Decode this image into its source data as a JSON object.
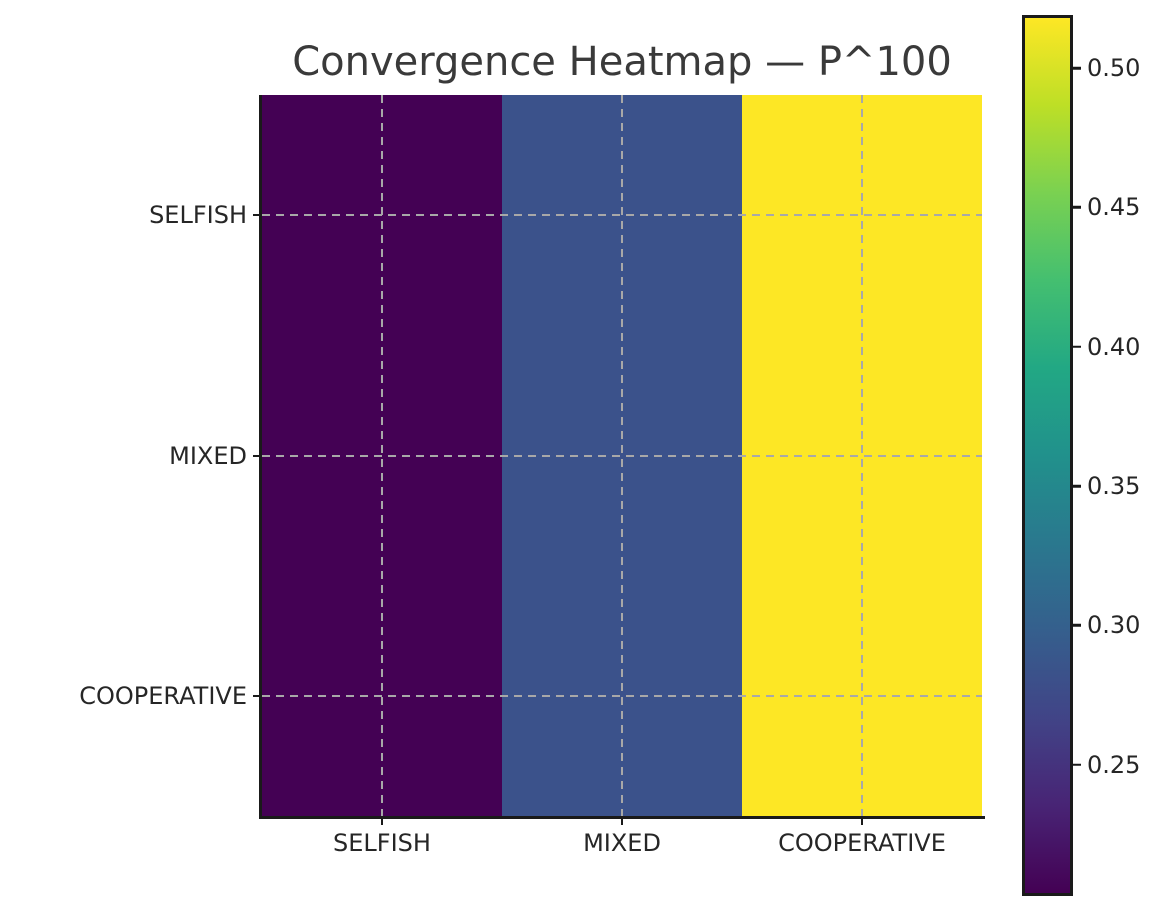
{
  "figure": {
    "background": "#ffffff"
  },
  "chart_data": {
    "type": "heatmap",
    "title": "Convergence Heatmap — P^100",
    "x_categories": [
      "SELFISH",
      "MIXED",
      "COOPERATIVE"
    ],
    "y_categories": [
      "SELFISH",
      "MIXED",
      "COOPERATIVE"
    ],
    "rows": [
      [
        0.204,
        0.279,
        0.518
      ],
      [
        0.204,
        0.279,
        0.518
      ],
      [
        0.204,
        0.279,
        0.518
      ]
    ],
    "cell_colors_by_column": [
      "#440154",
      "#3b528b",
      "#fde725"
    ],
    "colormap": "viridis",
    "colorbar": {
      "position": "right",
      "vmin": 0.204,
      "vmax": 0.518,
      "ticks": [
        0.5,
        0.45,
        0.4,
        0.35,
        0.3,
        0.25
      ],
      "tick_labels": [
        "0.50",
        "0.45",
        "0.40",
        "0.35",
        "0.30",
        "0.25"
      ]
    },
    "grid": true,
    "grid_linestyle": "dashed"
  },
  "colors": {
    "grid": "#a8a8a8",
    "spine": "#1a1a1a",
    "title_text": "#3a3a3a",
    "tick_text": "#262626",
    "background": "#ffffff"
  },
  "viridis_stops": [
    "#440154",
    "#482475",
    "#414487",
    "#355f8d",
    "#2a788e",
    "#21918c",
    "#22a884",
    "#44bf70",
    "#7ad151",
    "#bddf26",
    "#fde725"
  ]
}
